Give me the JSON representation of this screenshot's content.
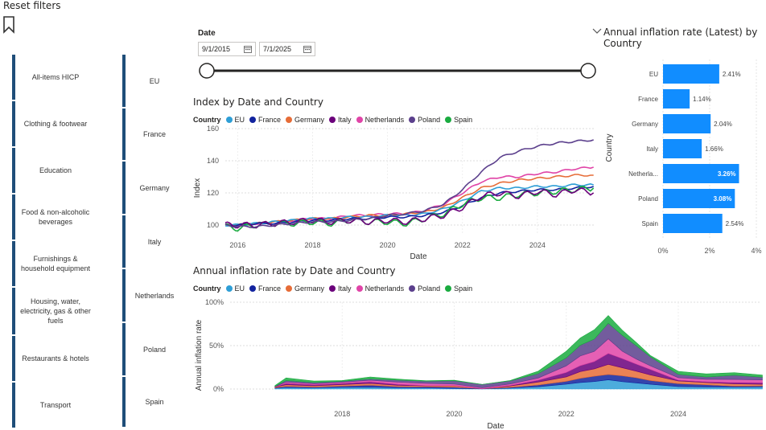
{
  "toolbar": {
    "reset_label": "Reset filters"
  },
  "category_slicer": {
    "items": [
      "All-items HICP",
      "Clothing & footwear",
      "Education",
      "Food & non-alcoholic beverages",
      "Furnishings & household equipment",
      "Housing, water, electricity, gas & other fuels",
      "Restaurants & hotels",
      "Transport"
    ]
  },
  "country_slicer": {
    "items": [
      "EU",
      "France",
      "Germany",
      "Italy",
      "Netherlands",
      "Poland",
      "Spain"
    ]
  },
  "date_slicer": {
    "label": "Date",
    "start": "9/1/2015",
    "end": "7/1/2025"
  },
  "legend": {
    "title": "Country",
    "items": [
      {
        "name": "EU",
        "color": "#2E9ED6"
      },
      {
        "name": "France",
        "color": "#12239E"
      },
      {
        "name": "Germany",
        "color": "#E66C37"
      },
      {
        "name": "Italy",
        "color": "#6B007B"
      },
      {
        "name": "Netherlands",
        "color": "#E044A7"
      },
      {
        "name": "Poland",
        "color": "#5B3F8C"
      },
      {
        "name": "Spain",
        "color": "#1AAB40"
      }
    ]
  },
  "chart_data": [
    {
      "type": "line",
      "title": "Index by Date and Country",
      "xlabel": "Date",
      "ylabel": "Index",
      "x": [
        2015.67,
        2016,
        2016.5,
        2017,
        2017.5,
        2018,
        2018.5,
        2019,
        2019.5,
        2020,
        2020.5,
        2021,
        2021.5,
        2022,
        2022.5,
        2023,
        2023.5,
        2024,
        2024.5,
        2025,
        2025.5
      ],
      "x_ticks": [
        "2016",
        "2018",
        "2020",
        "2022",
        "2024"
      ],
      "y_ticks": [
        "100",
        "120",
        "140",
        "160"
      ],
      "ylim": [
        94,
        162
      ],
      "xlim": [
        2015.67,
        2025.55
      ],
      "series": [
        {
          "name": "EU",
          "values": [
            100,
            100,
            101,
            102,
            103,
            104,
            104,
            105,
            105,
            106,
            106,
            107,
            110,
            115,
            121,
            123,
            123,
            124,
            124,
            125,
            125
          ]
        },
        {
          "name": "France",
          "values": [
            100,
            100,
            101,
            101,
            102,
            103,
            103,
            104,
            104,
            105,
            105,
            106,
            108,
            112,
            117,
            120,
            121,
            122,
            122,
            123,
            124
          ]
        },
        {
          "name": "Germany",
          "values": [
            100,
            100,
            101,
            102,
            103,
            104,
            104,
            105,
            106,
            106,
            107,
            108,
            111,
            117,
            123,
            126,
            128,
            129,
            130,
            131,
            131
          ]
        },
        {
          "name": "Italy",
          "values": [
            100,
            100,
            100,
            101,
            102,
            103,
            102,
            103,
            102,
            103,
            102,
            104,
            106,
            111,
            118,
            120,
            118,
            121,
            119,
            122,
            120
          ]
        },
        {
          "name": "Netherlands",
          "values": [
            100,
            100,
            101,
            101,
            103,
            104,
            104,
            106,
            106,
            107,
            107,
            109,
            113,
            120,
            127,
            130,
            130,
            132,
            133,
            135,
            136
          ]
        },
        {
          "name": "Poland",
          "values": [
            100,
            99,
            99,
            100,
            101,
            102,
            102,
            103,
            104,
            106,
            107,
            109,
            113,
            122,
            133,
            142,
            146,
            149,
            151,
            152,
            153
          ]
        },
        {
          "name": "Spain",
          "values": [
            99,
            98,
            100,
            101,
            101,
            102,
            101,
            103,
            102,
            102,
            101,
            104,
            107,
            113,
            117,
            117,
            119,
            120,
            121,
            122,
            123
          ]
        }
      ]
    },
    {
      "type": "area",
      "title": "Annual inflation rate by Date and Country",
      "xlabel": "Date",
      "ylabel": "Annual inflation rate",
      "x": [
        2016.8,
        2017,
        2017.5,
        2018,
        2018.5,
        2019,
        2019.5,
        2020,
        2020.5,
        2021,
        2021.5,
        2022,
        2022.25,
        2022.5,
        2022.75,
        2023,
        2023.25,
        2023.5,
        2024,
        2024.5,
        2025,
        2025.5
      ],
      "x_ticks": [
        "2018",
        "2020",
        "2022",
        "2024"
      ],
      "y_ticks": [
        "0%",
        "50%",
        "100%"
      ],
      "ylim": [
        0,
        100
      ],
      "stacked": true,
      "series": [
        {
          "name": "EU",
          "values": [
            1,
            1.8,
            1.4,
            1.9,
            2.1,
            1.5,
            1.3,
            0.7,
            0.2,
            1.1,
            2.6,
            5.6,
            7.5,
            8.6,
            10.6,
            8.5,
            7.0,
            5.5,
            2.8,
            2.4,
            2.2,
            2.4
          ]
        },
        {
          "name": "France",
          "values": [
            0.5,
            1.3,
            0.8,
            1.5,
            2.3,
            1.2,
            1.3,
            1.4,
            0.2,
            0.8,
            2.0,
            3.3,
            4.8,
            6.1,
            6.2,
            6.7,
            6.0,
            4.3,
            3.4,
            2.5,
            1.1,
            1.1
          ]
        },
        {
          "name": "Germany",
          "values": [
            0.8,
            1.8,
            1.5,
            1.8,
            2.1,
            1.6,
            1.1,
            1.6,
            0.0,
            1.6,
            3.5,
            5.1,
            7.8,
            8.5,
            11.6,
            9.2,
            7.6,
            6.5,
            3.1,
            2.5,
            2.6,
            2.0
          ]
        },
        {
          "name": "Italy",
          "values": [
            0.3,
            1.6,
            1.2,
            1.3,
            1.9,
            1.1,
            0.3,
            0.3,
            -0.8,
            0.7,
            2.1,
            5.1,
            6.8,
            8.5,
            12.6,
            10.7,
            8.1,
            6.3,
            0.9,
            0.9,
            1.6,
            1.7
          ]
        },
        {
          "name": "Netherlands",
          "values": [
            0.2,
            1.6,
            1.2,
            1.3,
            1.7,
            2.6,
            2.6,
            1.7,
            1.1,
            1.6,
            2.5,
            7.6,
            11.2,
            11.6,
            16.8,
            8.4,
            5.8,
            4.2,
            2.9,
            2.9,
            3.5,
            3.3
          ]
        },
        {
          "name": "Poland",
          "values": [
            0.2,
            1.7,
            1.4,
            1.2,
            1.5,
            2.2,
            2.5,
            3.8,
            3.8,
            3.6,
            5.0,
            9.2,
            12.4,
            14.2,
            17.9,
            18.4,
            15.3,
            10.3,
            3.8,
            2.6,
            4.9,
            3.1
          ]
        },
        {
          "name": "Spain",
          "values": [
            1.0,
            3.0,
            1.7,
            0.8,
            2.3,
            1.2,
            0.4,
            0.6,
            -0.6,
            0.4,
            2.9,
            7.6,
            8.3,
            10.7,
            8.9,
            5.9,
            3.8,
            1.6,
            3.5,
            3.6,
            2.9,
            2.5
          ]
        }
      ]
    },
    {
      "type": "bar",
      "title": "Annual inflation rate (Latest) by Country",
      "xlabel": "",
      "ylabel": "Country",
      "categories": [
        "EU",
        "France",
        "Germany",
        "Italy",
        "Netherla...",
        "Poland",
        "Spain"
      ],
      "values": [
        2.41,
        1.14,
        2.04,
        1.66,
        3.26,
        3.08,
        2.54
      ],
      "value_labels": [
        "2.41%",
        "1.14%",
        "2.04%",
        "1.66%",
        "3.26%",
        "3.08%",
        "2.54%"
      ],
      "x_ticks": [
        "0%",
        "2%",
        "4%"
      ],
      "xlim": [
        0,
        4
      ],
      "color": "#118DFF"
    }
  ]
}
